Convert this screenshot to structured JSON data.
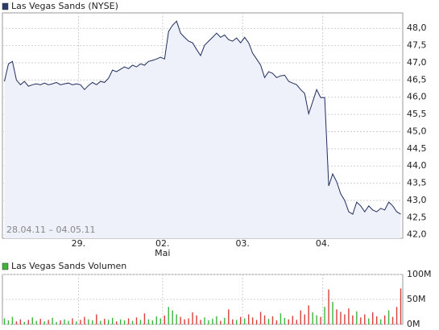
{
  "chart_data": [
    {
      "type": "area",
      "title": "Las Vegas Sands (NYSE)",
      "annotation": "28.04.11 – 04.05.11",
      "legend_color": "#2b3a67",
      "color": "#1f2d5c",
      "fill": "#eef0fa",
      "grid": true,
      "categories": [
        null,
        null,
        null,
        null,
        null,
        null,
        null,
        null,
        null,
        null,
        null,
        null,
        null,
        null,
        null,
        null,
        null,
        null,
        null,
        "29.",
        null,
        null,
        null,
        null,
        null,
        null,
        null,
        null,
        null,
        null,
        null,
        null,
        null,
        null,
        null,
        null,
        null,
        null,
        null,
        null,
        "02.",
        null,
        null,
        null,
        null,
        null,
        null,
        null,
        null,
        null,
        null,
        null,
        null,
        null,
        null,
        null,
        null,
        null,
        null,
        null,
        "03.",
        null,
        null,
        null,
        null,
        null,
        null,
        null,
        null,
        null,
        null,
        null,
        null,
        null,
        null,
        null,
        null,
        null,
        null,
        null,
        "04.",
        null,
        null,
        null,
        null,
        null,
        null,
        null,
        null,
        null,
        null,
        null,
        null,
        null,
        null,
        null,
        null,
        null,
        null,
        null
      ],
      "category_sublabels": [
        null,
        null,
        null,
        null,
        null,
        null,
        null,
        null,
        null,
        null,
        null,
        null,
        null,
        null,
        null,
        null,
        null,
        null,
        null,
        null,
        null,
        null,
        null,
        null,
        null,
        null,
        null,
        null,
        null,
        null,
        null,
        null,
        null,
        null,
        null,
        null,
        null,
        null,
        null,
        null,
        "Mai",
        null,
        null,
        null,
        null,
        null,
        null,
        null,
        null,
        null,
        null,
        null,
        null,
        null,
        null,
        null,
        null,
        null,
        null,
        null,
        null,
        null,
        null,
        null,
        null,
        null,
        null,
        null,
        null,
        null,
        null,
        null,
        null,
        null,
        null,
        null,
        null,
        null,
        null,
        null,
        null,
        null,
        null,
        null,
        null,
        null,
        null,
        null,
        null,
        null,
        null,
        null,
        null,
        null,
        null,
        null,
        null,
        null,
        null,
        null
      ],
      "values": [
        46.46,
        46.97,
        47.04,
        46.5,
        46.36,
        46.46,
        46.32,
        46.36,
        46.39,
        46.36,
        46.41,
        46.36,
        46.39,
        46.43,
        46.36,
        46.39,
        46.41,
        46.36,
        46.39,
        46.36,
        46.22,
        46.34,
        46.43,
        46.36,
        46.46,
        46.43,
        46.55,
        46.79,
        46.74,
        46.81,
        46.88,
        46.83,
        46.93,
        46.88,
        46.97,
        46.93,
        47.04,
        47.07,
        47.11,
        47.16,
        47.11,
        47.91,
        48.09,
        48.21,
        47.86,
        47.74,
        47.63,
        47.58,
        47.39,
        47.21,
        47.51,
        47.63,
        47.74,
        47.86,
        47.74,
        47.81,
        47.67,
        47.63,
        47.72,
        47.58,
        47.74,
        47.58,
        47.28,
        47.11,
        46.93,
        46.57,
        46.74,
        46.69,
        46.57,
        46.62,
        46.64,
        46.46,
        46.41,
        46.36,
        46.22,
        46.11,
        45.52,
        45.87,
        46.22,
        45.99,
        45.99,
        43.42,
        43.77,
        43.54,
        43.19,
        43.0,
        42.67,
        42.6,
        42.95,
        42.84,
        42.67,
        42.84,
        42.72,
        42.67,
        42.77,
        42.72,
        42.95,
        42.84,
        42.67,
        42.6
      ],
      "ylim": [
        41.9,
        48.45
      ],
      "yticks": [
        {
          "value": 42,
          "label": "42,0"
        },
        {
          "value": 42.5,
          "label": "42,5"
        },
        {
          "value": 43,
          "label": "43,0"
        },
        {
          "value": 43.5,
          "label": "43,5"
        },
        {
          "value": 44,
          "label": "44,0"
        },
        {
          "value": 44.5,
          "label": "44,5"
        },
        {
          "value": 45,
          "label": "45,0"
        },
        {
          "value": 45.5,
          "label": "45,5"
        },
        {
          "value": 46,
          "label": "46,0"
        },
        {
          "value": 46.5,
          "label": "46,5"
        },
        {
          "value": 47,
          "label": "47,0"
        },
        {
          "value": 47.5,
          "label": "47,5"
        },
        {
          "value": 48,
          "label": "48,0"
        }
      ]
    },
    {
      "type": "bar",
      "title": "Las Vegas Sands Volumen",
      "legend_color": "#3cb43c",
      "up_color": "#3cb43c",
      "down_color": "#d9403a",
      "grid": true,
      "values": [
        12,
        8,
        15,
        6,
        10,
        5,
        9,
        14,
        7,
        11,
        6,
        9,
        13,
        5,
        8,
        10,
        7,
        12,
        6,
        9,
        15,
        10,
        8,
        20,
        7,
        11,
        9,
        13,
        6,
        10,
        8,
        12,
        7,
        14,
        9,
        22,
        10,
        8,
        16,
        12,
        18,
        35,
        28,
        20,
        15,
        10,
        12,
        24,
        18,
        9,
        14,
        8,
        11,
        16,
        7,
        13,
        30,
        10,
        9,
        15,
        12,
        20,
        14,
        9,
        25,
        18,
        11,
        16,
        8,
        22,
        13,
        10,
        17,
        9,
        28,
        20,
        38,
        24,
        18,
        15,
        35,
        70,
        45,
        30,
        25,
        20,
        32,
        18,
        26,
        14,
        20,
        12,
        24,
        16,
        10,
        18,
        28,
        15,
        35,
        72
      ],
      "ylim": [
        0,
        100
      ],
      "yticks": [
        {
          "value": 0,
          "label": "0M"
        },
        {
          "value": 50,
          "label": "50M"
        },
        {
          "value": 100,
          "label": "100M"
        }
      ]
    }
  ]
}
